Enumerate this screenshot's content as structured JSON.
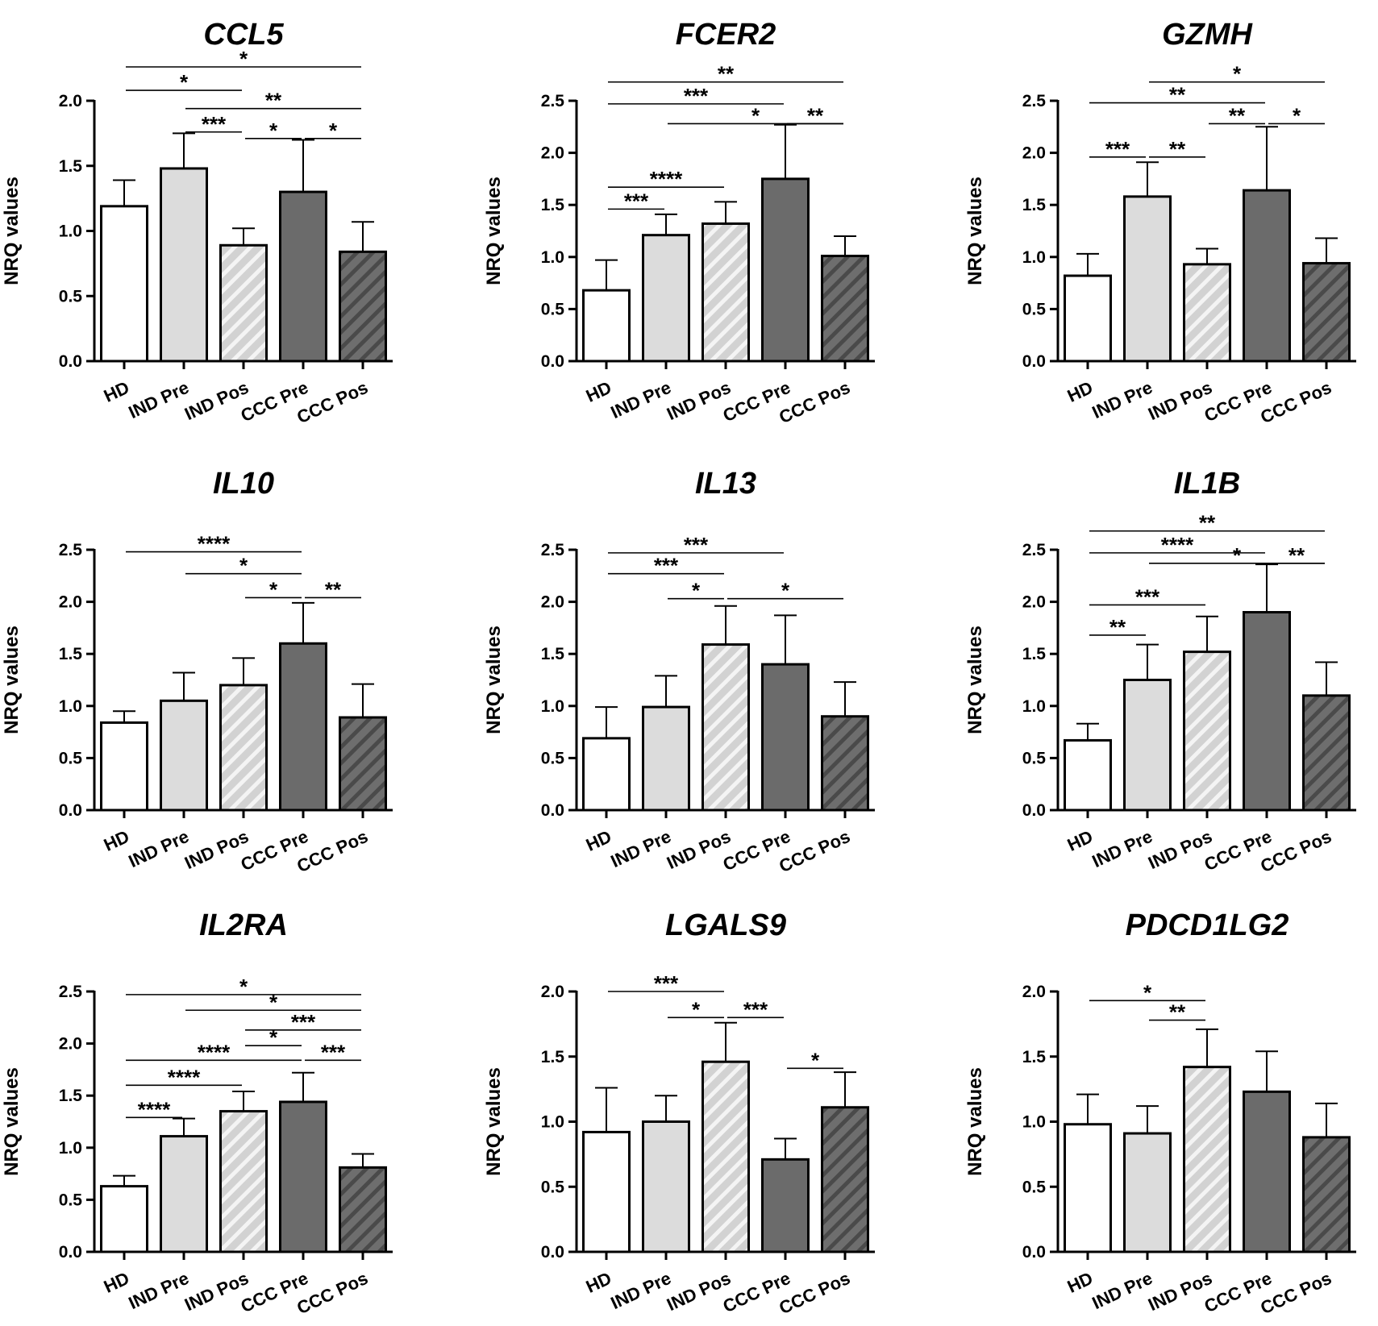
{
  "group_labels": [
    "HD",
    "IND Pre",
    "IND Pos",
    "CCC Pre",
    "CCC Pos"
  ],
  "colors": {
    "HD": "#ffffff",
    "IND Pre": "#dcdcdc",
    "IND Pos": "#d2d2d2",
    "IND Pos stripe": "#f4f4f4",
    "CCC Pre": "#6b6b6b",
    "CCC Pos": "#6e6e6e",
    "CCC Pos stripe": "#4a4a4a",
    "axis": "#000000"
  },
  "chart_data": [
    {
      "type": "bar",
      "title": "CCL5",
      "ylabel": "NRQ values",
      "ylim": [
        0,
        2.0
      ],
      "yticks": [
        "0.0",
        "0.5",
        "1.0",
        "1.5",
        "2.0"
      ],
      "categories": [
        "HD",
        "IND Pre",
        "IND Pos",
        "CCC Pre",
        "CCC Pos"
      ],
      "values": [
        1.19,
        1.48,
        0.89,
        1.3,
        0.84
      ],
      "errors": [
        0.2,
        0.27,
        0.13,
        0.4,
        0.23
      ],
      "significance": [
        {
          "from": 0,
          "to": 4,
          "level": 2.26,
          "label": "*"
        },
        {
          "from": 0,
          "to": 2,
          "level": 2.08,
          "label": "*"
        },
        {
          "from": 1,
          "to": 4,
          "level": 1.94,
          "label": "**"
        },
        {
          "from": 1,
          "to": 2,
          "level": 1.76,
          "label": "***"
        },
        {
          "from": 2,
          "to": 3,
          "level": 1.71,
          "label": "*"
        },
        {
          "from": 3,
          "to": 4,
          "level": 1.71,
          "label": "*"
        }
      ]
    },
    {
      "type": "bar",
      "title": "FCER2",
      "ylabel": "NRQ values",
      "ylim": [
        0,
        2.5
      ],
      "yticks": [
        "0.0",
        "0.5",
        "1.0",
        "1.5",
        "2.0",
        "2.5"
      ],
      "categories": [
        "HD",
        "IND Pre",
        "IND Pos",
        "CCC Pre",
        "CCC Pos"
      ],
      "values": [
        0.68,
        1.21,
        1.32,
        1.75,
        1.01
      ],
      "errors": [
        0.29,
        0.2,
        0.21,
        0.52,
        0.19
      ],
      "significance": [
        {
          "from": 0,
          "to": 4,
          "level": 2.68,
          "label": "**"
        },
        {
          "from": 0,
          "to": 3,
          "level": 2.47,
          "label": "***"
        },
        {
          "from": 1,
          "to": 4,
          "level": 2.28,
          "label": "*"
        },
        {
          "from": 3,
          "to": 4,
          "level": 2.28,
          "label": "**"
        },
        {
          "from": 0,
          "to": 2,
          "level": 1.67,
          "label": "****"
        },
        {
          "from": 0,
          "to": 1,
          "level": 1.46,
          "label": "***"
        }
      ]
    },
    {
      "type": "bar",
      "title": "GZMH",
      "ylabel": "NRQ values",
      "ylim": [
        0,
        2.5
      ],
      "yticks": [
        "0.0",
        "0.5",
        "1.0",
        "1.5",
        "2.0",
        "2.5"
      ],
      "categories": [
        "HD",
        "IND Pre",
        "IND Pos",
        "CCC Pre",
        "CCC Pos"
      ],
      "values": [
        0.82,
        1.58,
        0.93,
        1.64,
        0.94
      ],
      "errors": [
        0.21,
        0.33,
        0.15,
        0.61,
        0.24
      ],
      "significance": [
        {
          "from": 1,
          "to": 4,
          "level": 2.68,
          "label": "*"
        },
        {
          "from": 0,
          "to": 3,
          "level": 2.48,
          "label": "**"
        },
        {
          "from": 2,
          "to": 3,
          "level": 2.28,
          "label": "**"
        },
        {
          "from": 3,
          "to": 4,
          "level": 2.28,
          "label": "*"
        },
        {
          "from": 0,
          "to": 1,
          "level": 1.96,
          "label": "***"
        },
        {
          "from": 1,
          "to": 2,
          "level": 1.96,
          "label": "**"
        }
      ]
    },
    {
      "type": "bar",
      "title": "IL10",
      "ylabel": "NRQ values",
      "ylim": [
        0,
        2.5
      ],
      "yticks": [
        "0.0",
        "0.5",
        "1.0",
        "1.5",
        "2.0",
        "2.5"
      ],
      "categories": [
        "HD",
        "IND Pre",
        "IND Pos",
        "CCC Pre",
        "CCC Pos"
      ],
      "values": [
        0.84,
        1.05,
        1.2,
        1.6,
        0.89
      ],
      "errors": [
        0.11,
        0.27,
        0.26,
        0.39,
        0.32
      ],
      "significance": [
        {
          "from": 0,
          "to": 3,
          "level": 2.48,
          "label": "****"
        },
        {
          "from": 1,
          "to": 3,
          "level": 2.27,
          "label": "*"
        },
        {
          "from": 2,
          "to": 3,
          "level": 2.04,
          "label": "*"
        },
        {
          "from": 3,
          "to": 4,
          "level": 2.04,
          "label": "**"
        }
      ]
    },
    {
      "type": "bar",
      "title": "IL13",
      "ylabel": "NRQ values",
      "ylim": [
        0,
        2.5
      ],
      "yticks": [
        "0.0",
        "0.5",
        "1.0",
        "1.5",
        "2.0",
        "2.5"
      ],
      "categories": [
        "HD",
        "IND Pre",
        "IND Pos",
        "CCC Pre",
        "CCC Pos"
      ],
      "values": [
        0.69,
        0.99,
        1.59,
        1.4,
        0.9
      ],
      "errors": [
        0.3,
        0.3,
        0.37,
        0.47,
        0.33
      ],
      "significance": [
        {
          "from": 0,
          "to": 3,
          "level": 2.47,
          "label": "***"
        },
        {
          "from": 0,
          "to": 2,
          "level": 2.27,
          "label": "***"
        },
        {
          "from": 1,
          "to": 2,
          "level": 2.03,
          "label": "*"
        },
        {
          "from": 2,
          "to": 4,
          "level": 2.03,
          "label": "*"
        }
      ]
    },
    {
      "type": "bar",
      "title": "IL1B",
      "ylabel": "NRQ values",
      "ylim": [
        0,
        2.5
      ],
      "yticks": [
        "0.0",
        "0.5",
        "1.0",
        "1.5",
        "2.0",
        "2.5"
      ],
      "categories": [
        "HD",
        "IND Pre",
        "IND Pos",
        "CCC Pre",
        "CCC Pos"
      ],
      "values": [
        0.67,
        1.25,
        1.52,
        1.9,
        1.1
      ],
      "errors": [
        0.16,
        0.34,
        0.34,
        0.46,
        0.32
      ],
      "significance": [
        {
          "from": 0,
          "to": 4,
          "level": 2.68,
          "label": "**"
        },
        {
          "from": 0,
          "to": 3,
          "level": 2.47,
          "label": "****"
        },
        {
          "from": 1,
          "to": 4,
          "level": 2.37,
          "label": "*"
        },
        {
          "from": 3,
          "to": 4,
          "level": 2.37,
          "label": "**"
        },
        {
          "from": 0,
          "to": 2,
          "level": 1.97,
          "label": "***"
        },
        {
          "from": 0,
          "to": 1,
          "level": 1.68,
          "label": "**"
        }
      ]
    },
    {
      "type": "bar",
      "title": "IL2RA",
      "ylabel": "NRQ values",
      "ylim": [
        0,
        2.5
      ],
      "yticks": [
        "0.0",
        "0.5",
        "1.0",
        "1.5",
        "2.0",
        "2.5"
      ],
      "categories": [
        "HD",
        "IND Pre",
        "IND Pos",
        "CCC Pre",
        "CCC Pos"
      ],
      "values": [
        0.63,
        1.11,
        1.35,
        1.44,
        0.81
      ],
      "errors": [
        0.1,
        0.17,
        0.19,
        0.28,
        0.13
      ],
      "significance": [
        {
          "from": 0,
          "to": 4,
          "level": 2.47,
          "label": "*"
        },
        {
          "from": 1,
          "to": 4,
          "level": 2.32,
          "label": "*"
        },
        {
          "from": 2,
          "to": 4,
          "level": 2.13,
          "label": "***"
        },
        {
          "from": 2,
          "to": 3,
          "level": 1.98,
          "label": "*"
        },
        {
          "from": 0,
          "to": 3,
          "level": 1.84,
          "label": "****"
        },
        {
          "from": 3,
          "to": 4,
          "level": 1.84,
          "label": "***"
        },
        {
          "from": 0,
          "to": 2,
          "level": 1.6,
          "label": "****"
        },
        {
          "from": 0,
          "to": 1,
          "level": 1.29,
          "label": "****"
        }
      ]
    },
    {
      "type": "bar",
      "title": "LGALS9",
      "ylabel": "NRQ values",
      "ylim": [
        0,
        2.0
      ],
      "yticks": [
        "0.0",
        "0.5",
        "1.0",
        "1.5",
        "2.0"
      ],
      "categories": [
        "HD",
        "IND Pre",
        "IND Pos",
        "CCC Pre",
        "CCC Pos"
      ],
      "values": [
        0.92,
        1.0,
        1.46,
        0.71,
        1.11
      ],
      "errors": [
        0.34,
        0.2,
        0.3,
        0.16,
        0.27
      ],
      "significance": [
        {
          "from": 0,
          "to": 2,
          "level": 2.0,
          "label": "***"
        },
        {
          "from": 1,
          "to": 2,
          "level": 1.8,
          "label": "*"
        },
        {
          "from": 2,
          "to": 3,
          "level": 1.8,
          "label": "***"
        },
        {
          "from": 3,
          "to": 4,
          "level": 1.41,
          "label": "*"
        }
      ]
    },
    {
      "type": "bar",
      "title": "PDCD1LG2",
      "ylabel": "NRQ values",
      "ylim": [
        0,
        2.0
      ],
      "yticks": [
        "0.0",
        "0.5",
        "1.0",
        "1.5",
        "2.0"
      ],
      "categories": [
        "HD",
        "IND Pre",
        "IND Pos",
        "CCC Pre",
        "CCC Pos"
      ],
      "values": [
        0.98,
        0.91,
        1.42,
        1.23,
        0.88
      ],
      "errors": [
        0.23,
        0.21,
        0.29,
        0.31,
        0.26
      ],
      "significance": [
        {
          "from": 0,
          "to": 2,
          "level": 1.93,
          "label": "*"
        },
        {
          "from": 1,
          "to": 2,
          "level": 1.78,
          "label": "**"
        }
      ]
    }
  ]
}
